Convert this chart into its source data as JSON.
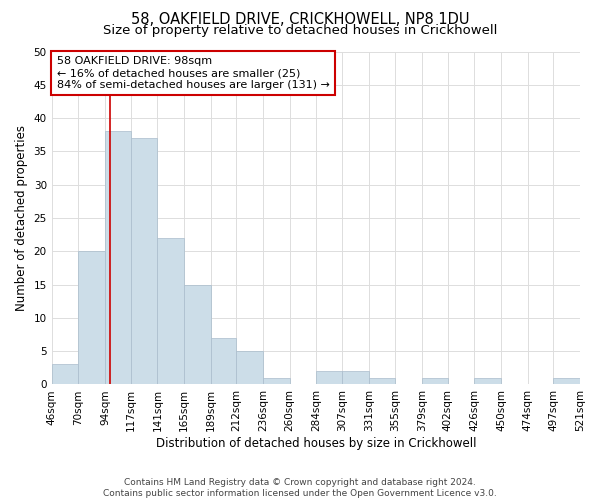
{
  "title": "58, OAKFIELD DRIVE, CRICKHOWELL, NP8 1DU",
  "subtitle": "Size of property relative to detached houses in Crickhowell",
  "xlabel": "Distribution of detached houses by size in Crickhowell",
  "ylabel": "Number of detached properties",
  "bin_labels": [
    "46sqm",
    "70sqm",
    "94sqm",
    "117sqm",
    "141sqm",
    "165sqm",
    "189sqm",
    "212sqm",
    "236sqm",
    "260sqm",
    "284sqm",
    "307sqm",
    "331sqm",
    "355sqm",
    "379sqm",
    "402sqm",
    "426sqm",
    "450sqm",
    "474sqm",
    "497sqm",
    "521sqm"
  ],
  "bin_edges": [
    46,
    70,
    94,
    117,
    141,
    165,
    189,
    212,
    236,
    260,
    284,
    307,
    331,
    355,
    379,
    402,
    426,
    450,
    474,
    497,
    521
  ],
  "bar_heights": [
    3,
    20,
    38,
    37,
    22,
    15,
    7,
    5,
    1,
    0,
    2,
    2,
    1,
    0,
    1,
    0,
    1,
    0,
    0,
    1
  ],
  "bar_color": "#ccdde8",
  "bar_edgecolor": "#aabccc",
  "property_value": 98,
  "vline_color": "#cc0000",
  "annotation_line1": "58 OAKFIELD DRIVE: 98sqm",
  "annotation_line2": "← 16% of detached houses are smaller (25)",
  "annotation_line3": "84% of semi-detached houses are larger (131) →",
  "annotation_box_edgecolor": "#cc0000",
  "annotation_box_facecolor": "#ffffff",
  "ylim": [
    0,
    50
  ],
  "yticks": [
    0,
    5,
    10,
    15,
    20,
    25,
    30,
    35,
    40,
    45,
    50
  ],
  "footer_line1": "Contains HM Land Registry data © Crown copyright and database right 2024.",
  "footer_line2": "Contains public sector information licensed under the Open Government Licence v3.0.",
  "background_color": "#ffffff",
  "grid_color": "#dddddd",
  "title_fontsize": 10.5,
  "subtitle_fontsize": 9.5,
  "axis_label_fontsize": 8.5,
  "tick_fontsize": 7.5,
  "annotation_fontsize": 8,
  "footer_fontsize": 6.5
}
